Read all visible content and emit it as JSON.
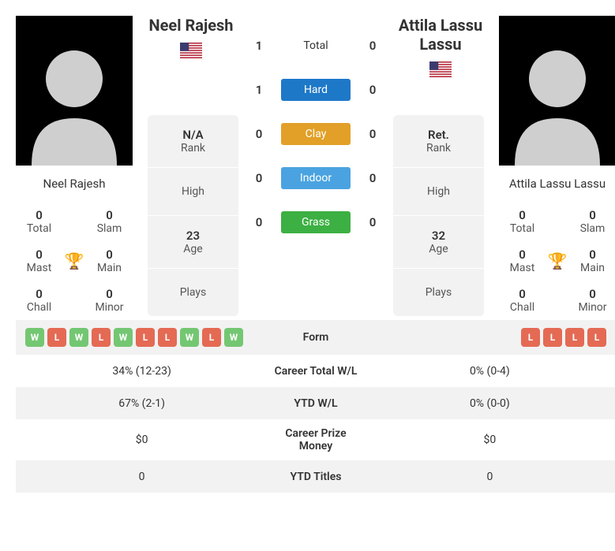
{
  "player1": {
    "name": "Neel Rajesh",
    "nameLabel": "Neel Rajesh",
    "rank": "N/A",
    "rankLabel": "Rank",
    "high": "High",
    "age": "23",
    "ageLabel": "Age",
    "plays": "Plays",
    "titles": {
      "total": "0",
      "totalLabel": "Total",
      "slam": "0",
      "slamLabel": "Slam",
      "mast": "0",
      "mastLabel": "Mast",
      "main": "0",
      "mainLabel": "Main",
      "chall": "0",
      "challLabel": "Chall",
      "minor": "0",
      "minorLabel": "Minor"
    },
    "h2h": {
      "total": "1",
      "hard": "1",
      "clay": "0",
      "indoor": "0",
      "grass": "0"
    },
    "form": [
      "W",
      "L",
      "W",
      "L",
      "W",
      "L",
      "L",
      "W",
      "L",
      "W"
    ],
    "careerWL": "34% (12-23)",
    "ytdWL": "67% (2-1)",
    "prize": "$0",
    "ytdTitles": "0"
  },
  "player2": {
    "name": "Attila Lassu Lassu",
    "nameLabel": "Attila Lassu Lassu",
    "rank": "Ret.",
    "rankLabel": "Rank",
    "high": "High",
    "age": "32",
    "ageLabel": "Age",
    "plays": "Plays",
    "titles": {
      "total": "0",
      "totalLabel": "Total",
      "slam": "0",
      "slamLabel": "Slam",
      "mast": "0",
      "mastLabel": "Mast",
      "main": "0",
      "mainLabel": "Main",
      "chall": "0",
      "challLabel": "Chall",
      "minor": "0",
      "minorLabel": "Minor"
    },
    "h2h": {
      "total": "0",
      "hard": "0",
      "clay": "0",
      "indoor": "0",
      "grass": "0"
    },
    "form": [
      "L",
      "L",
      "L",
      "L"
    ],
    "careerWL": "0% (0-4)",
    "ytdWL": "0% (0-0)",
    "prize": "$0",
    "ytdTitles": "0"
  },
  "surfaces": {
    "total": "Total",
    "hard": "Hard",
    "clay": "Clay",
    "indoor": "Indoor",
    "grass": "Grass"
  },
  "labels": {
    "form": "Form",
    "careerWL": "Career Total W/L",
    "ytdWL": "YTD W/L",
    "prize": "Career Prize Money",
    "ytdTitles": "YTD Titles"
  },
  "colors": {
    "hard": "#1e78c8",
    "clay": "#e2a028",
    "indoor": "#4aa3e0",
    "grass": "#3cb043",
    "win": "#74c772",
    "loss": "#e46a54",
    "trophy": "#1d7fbf"
  }
}
